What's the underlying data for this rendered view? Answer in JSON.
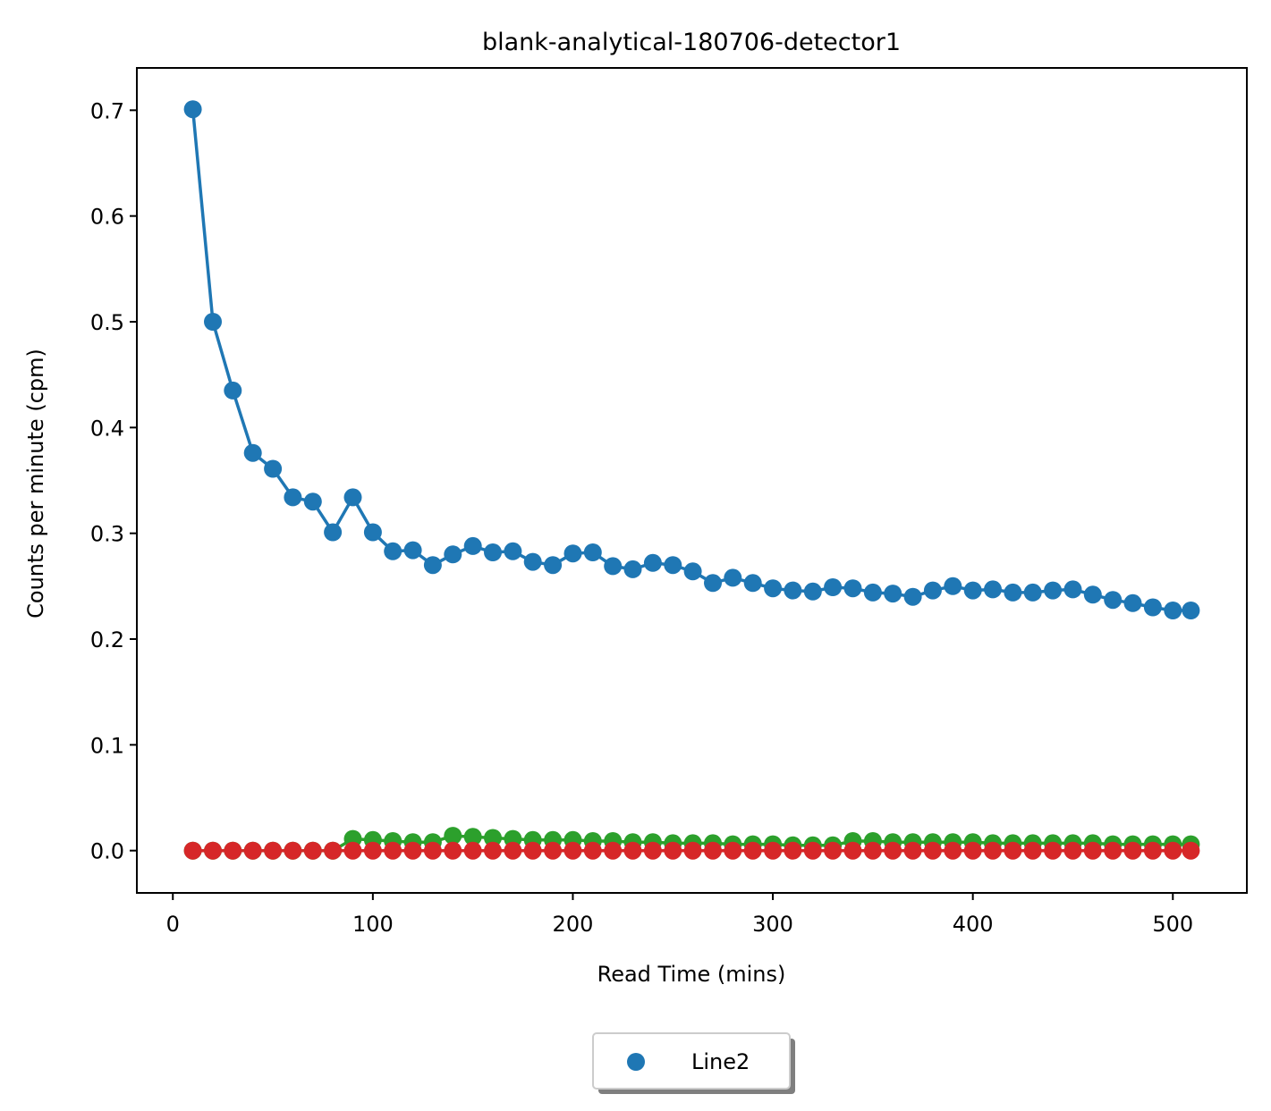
{
  "chart_data": {
    "type": "line",
    "title": "blank-analytical-180706-detector1",
    "xlabel": "Read Time (mins)",
    "ylabel": "Counts per minute (cpm)",
    "xlim": [
      -18,
      537
    ],
    "ylim": [
      -0.04,
      0.74
    ],
    "xticks": [
      0,
      100,
      200,
      300,
      400,
      500
    ],
    "yticks": [
      0.0,
      0.1,
      0.2,
      0.3,
      0.4,
      0.5,
      0.6,
      0.7
    ],
    "xtick_labels": [
      "0",
      "100",
      "200",
      "300",
      "400",
      "500"
    ],
    "ytick_labels": [
      "0.0",
      "0.1",
      "0.2",
      "0.3",
      "0.4",
      "0.5",
      "0.6",
      "0.7"
    ],
    "grid": false,
    "legend": {
      "position": "bottom-center",
      "entries": [
        "Line2"
      ]
    },
    "x": [
      10,
      20,
      30,
      40,
      50,
      60,
      70,
      80,
      90,
      100,
      110,
      120,
      130,
      140,
      150,
      160,
      170,
      180,
      190,
      200,
      210,
      220,
      230,
      240,
      250,
      260,
      270,
      280,
      290,
      300,
      310,
      320,
      330,
      340,
      350,
      360,
      370,
      380,
      390,
      400,
      410,
      420,
      430,
      440,
      450,
      460,
      470,
      480,
      490,
      500,
      509
    ],
    "series": [
      {
        "name": "Line2",
        "color": "#1f77b4",
        "values": [
          0.701,
          0.5,
          0.435,
          0.376,
          0.361,
          0.334,
          0.33,
          0.301,
          0.334,
          0.301,
          0.283,
          0.284,
          0.27,
          0.28,
          0.288,
          0.282,
          0.283,
          0.273,
          0.27,
          0.281,
          0.282,
          0.269,
          0.266,
          0.272,
          0.27,
          0.264,
          0.253,
          0.258,
          0.253,
          0.248,
          0.246,
          0.245,
          0.249,
          0.248,
          0.244,
          0.243,
          0.24,
          0.246,
          0.25,
          0.246,
          0.247,
          0.244,
          0.244,
          0.246,
          0.247,
          0.242,
          0.237,
          0.234,
          0.23,
          0.227,
          0.227
        ]
      },
      {
        "color": "#2ca02c",
        "values": [
          0,
          0,
          0,
          0,
          0,
          0,
          0,
          0,
          0.011,
          0.01,
          0.009,
          0.008,
          0.008,
          0.014,
          0.013,
          0.012,
          0.011,
          0.01,
          0.01,
          0.01,
          0.009,
          0.009,
          0.008,
          0.008,
          0.007,
          0.007,
          0.007,
          0.006,
          0.006,
          0.006,
          0.005,
          0.005,
          0.005,
          0.009,
          0.009,
          0.008,
          0.008,
          0.008,
          0.008,
          0.008,
          0.007,
          0.007,
          0.007,
          0.007,
          0.007,
          0.007,
          0.006,
          0.006,
          0.006,
          0.006,
          0.006
        ]
      },
      {
        "color": "#d62728",
        "values": [
          0,
          0,
          0,
          0,
          0,
          0,
          0,
          0,
          0,
          0,
          0,
          0,
          0,
          0,
          0,
          0,
          0,
          0,
          0,
          0,
          0,
          0,
          0,
          0,
          0,
          0,
          0,
          0,
          0,
          0,
          0,
          0,
          0,
          0,
          0,
          0,
          0,
          0,
          0,
          0,
          0,
          0,
          0,
          0,
          0,
          0,
          0,
          0,
          0,
          0,
          0
        ]
      }
    ]
  }
}
